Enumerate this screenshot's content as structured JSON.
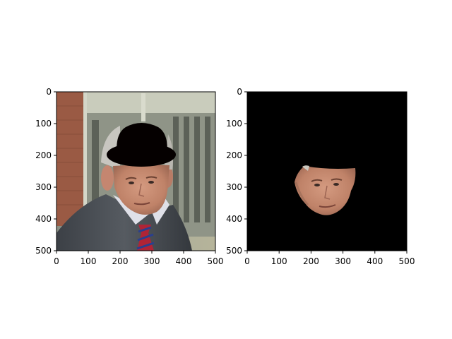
{
  "figure": {
    "background": "#ffffff",
    "axis_color": "#000000"
  },
  "chart_data": [
    {
      "type": "image",
      "content": "photo of a man in a grey suit and red-blue striped tie, with a black bowler hat drawn over his head",
      "xlim": [
        0,
        500
      ],
      "ylim": [
        500,
        0
      ],
      "xticks": [
        0,
        100,
        200,
        300,
        400,
        500
      ],
      "yticks": [
        0,
        100,
        200,
        300,
        400,
        500
      ],
      "xlabel": "",
      "ylabel": "",
      "title": ""
    },
    {
      "type": "image",
      "content": "face region of the same man cut out on a black background",
      "xlim": [
        0,
        500
      ],
      "ylim": [
        500,
        0
      ],
      "xticks": [
        0,
        100,
        200,
        300,
        400,
        500
      ],
      "yticks": [
        0,
        100,
        200,
        300,
        400,
        500
      ],
      "xlabel": "",
      "ylabel": "",
      "title": ""
    }
  ]
}
